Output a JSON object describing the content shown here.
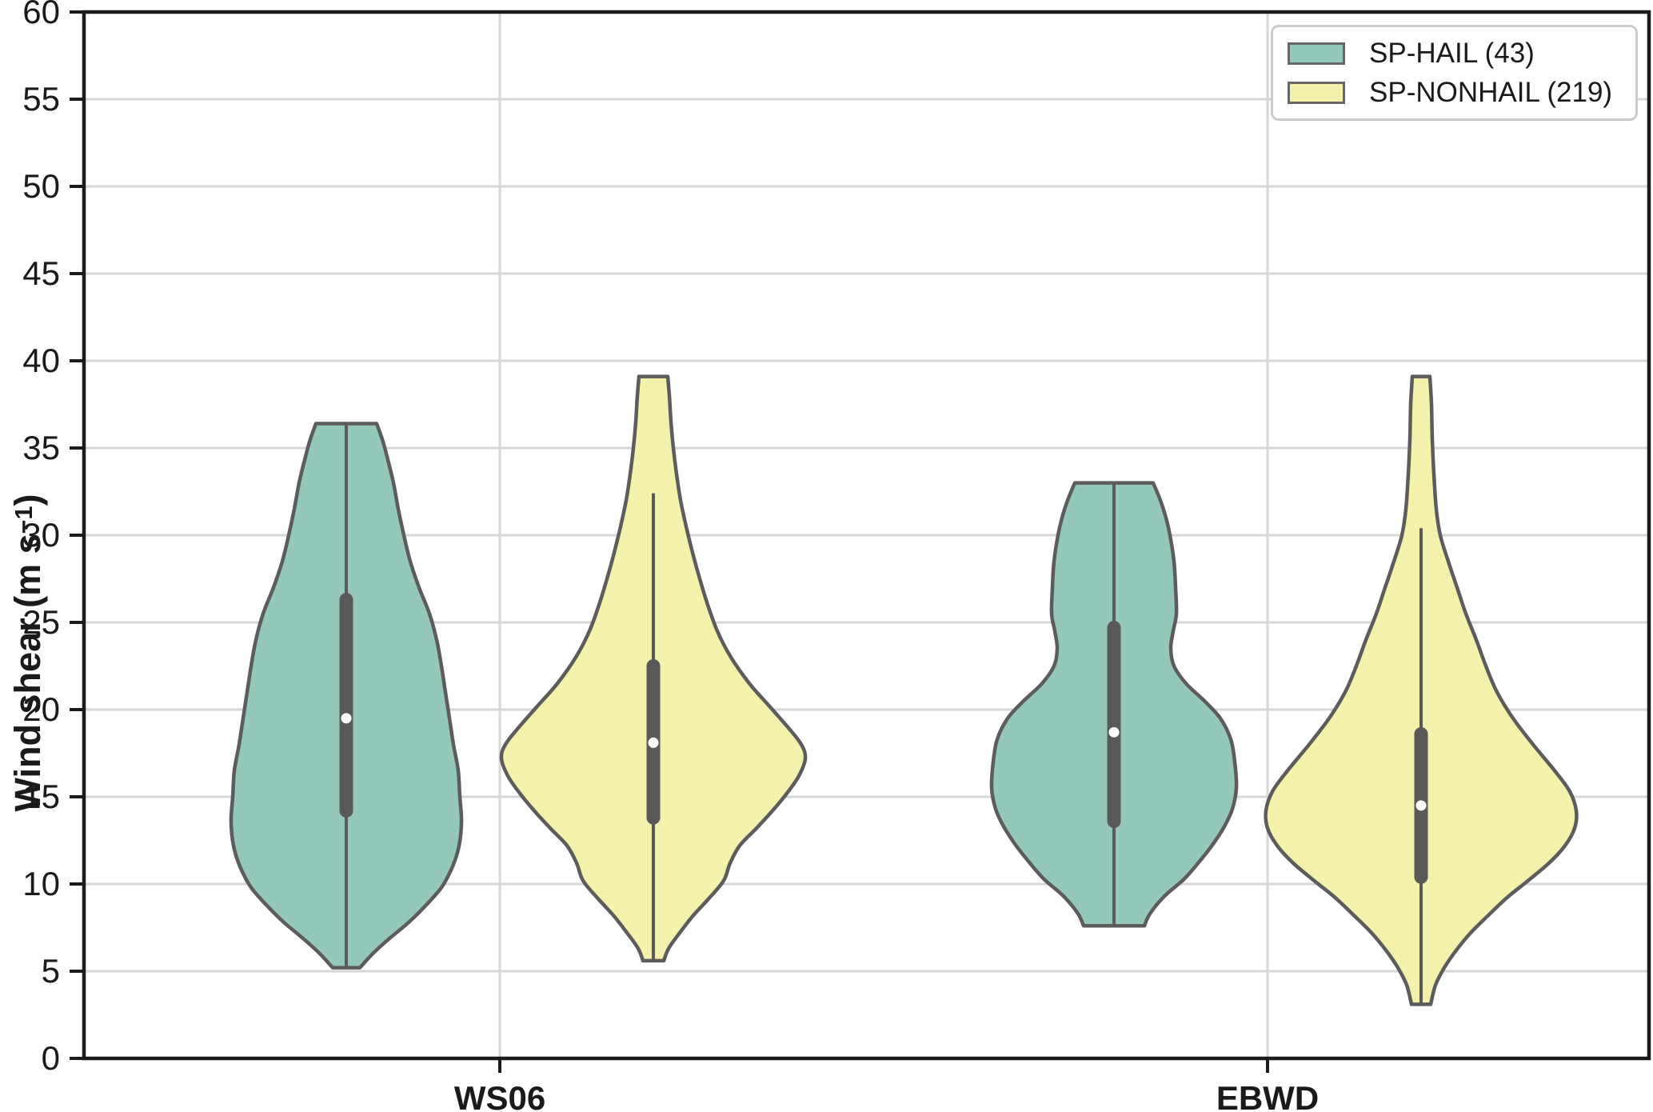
{
  "figure": {
    "background": "#ffffff",
    "ylabel": {
      "main": "Wind shear (m s",
      "sup": "−1",
      "end": ")"
    },
    "legend": {
      "items": [
        {
          "label": "SP-HAIL (43)",
          "color": "#94c8ba"
        },
        {
          "label": "SP-NONHAIL (219)",
          "color": "#f3f1ab"
        }
      ]
    }
  },
  "style": {
    "violin_outline": "#5c5c5c",
    "box_color": "#595959",
    "median_dot": "#ffffff",
    "grid_color": "#d6d6d6",
    "spine_color": "#1a1a1a",
    "hail_fill": "#94c8ba",
    "nonhail_fill": "#f3f1ab"
  },
  "chart_data": {
    "type": "violin",
    "title": "",
    "xlabel": "",
    "ylabel": "Wind shear (m s^-1)",
    "ylim": [
      0,
      60
    ],
    "ytick_step": 5,
    "grid": true,
    "legend_position": "upper right",
    "categories": [
      "WS06",
      "EBWD"
    ],
    "groups": [
      "SP-HAIL (43)",
      "SP-NONHAIL (219)"
    ],
    "violins": [
      {
        "category": "WS06",
        "group": "SP-HAIL",
        "n": 43,
        "color": "#94c8ba",
        "stats": {
          "min": 5.2,
          "q1": 14.2,
          "median": 19.5,
          "q3": 26.3,
          "max": 36.4,
          "whisker_low": 5.2,
          "whisker_high": 36.4
        },
        "profile": [
          [
            36.4,
            38
          ],
          [
            35.5,
            45
          ],
          [
            34.5,
            51
          ],
          [
            33,
            59
          ],
          [
            31.5,
            65
          ],
          [
            30,
            72
          ],
          [
            28.5,
            80
          ],
          [
            27,
            91
          ],
          [
            25.5,
            104
          ],
          [
            24,
            113
          ],
          [
            22.5,
            119
          ],
          [
            21,
            124
          ],
          [
            19.5,
            129
          ],
          [
            18,
            134
          ],
          [
            16.5,
            140
          ],
          [
            15,
            142
          ],
          [
            13.8,
            144
          ],
          [
            12.8,
            143
          ],
          [
            11.8,
            139
          ],
          [
            10.8,
            131
          ],
          [
            9.8,
            119
          ],
          [
            8.8,
            100
          ],
          [
            7.8,
            78
          ],
          [
            6.8,
            52
          ],
          [
            6,
            33
          ],
          [
            5.2,
            17
          ]
        ]
      },
      {
        "category": "WS06",
        "group": "SP-NONHAIL",
        "n": 219,
        "color": "#f3f1ab",
        "stats": {
          "min": 5.6,
          "q1": 13.8,
          "median": 18.1,
          "q3": 22.5,
          "max": 39.1,
          "whisker_low": 5.6,
          "whisker_high": 32.4
        },
        "profile": [
          [
            39.1,
            18
          ],
          [
            38,
            20
          ],
          [
            36.5,
            22
          ],
          [
            35,
            25
          ],
          [
            33.5,
            29
          ],
          [
            32,
            34
          ],
          [
            30.5,
            41
          ],
          [
            29,
            49
          ],
          [
            27.5,
            58
          ],
          [
            26,
            68
          ],
          [
            24.5,
            80
          ],
          [
            23,
            97
          ],
          [
            21.5,
            120
          ],
          [
            20.2,
            145
          ],
          [
            19,
            168
          ],
          [
            18,
            185
          ],
          [
            17.2,
            190
          ],
          [
            16.2,
            182
          ],
          [
            15.2,
            167
          ],
          [
            14.2,
            149
          ],
          [
            13.2,
            129
          ],
          [
            12.2,
            108
          ],
          [
            11.2,
            96
          ],
          [
            10.2,
            88
          ],
          [
            9.2,
            70
          ],
          [
            8.2,
            50
          ],
          [
            7.2,
            33
          ],
          [
            6.3,
            19
          ],
          [
            5.6,
            13
          ]
        ]
      },
      {
        "category": "EBWD",
        "group": "SP-HAIL",
        "n": 43,
        "color": "#94c8ba",
        "stats": {
          "min": 7.6,
          "q1": 13.6,
          "median": 18.7,
          "q3": 24.7,
          "max": 33.0,
          "whisker_low": 7.6,
          "whisker_high": 33.0
        },
        "profile": [
          [
            33,
            49
          ],
          [
            32,
            58
          ],
          [
            31,
            65
          ],
          [
            30,
            70
          ],
          [
            28.5,
            75
          ],
          [
            27,
            77
          ],
          [
            25.5,
            78
          ],
          [
            24.5,
            74
          ],
          [
            23.5,
            71
          ],
          [
            22.5,
            75
          ],
          [
            21.5,
            90
          ],
          [
            20.5,
            113
          ],
          [
            19.5,
            133
          ],
          [
            18.3,
            146
          ],
          [
            17,
            151
          ],
          [
            15.5,
            153
          ],
          [
            14.3,
            148
          ],
          [
            13.3,
            138
          ],
          [
            12.3,
            124
          ],
          [
            11.3,
            107
          ],
          [
            10.3,
            88
          ],
          [
            9.3,
            63
          ],
          [
            8.3,
            45
          ],
          [
            7.6,
            38
          ]
        ]
      },
      {
        "category": "EBWD",
        "group": "SP-NONHAIL",
        "n": 219,
        "color": "#f3f1ab",
        "stats": {
          "min": 3.1,
          "q1": 10.4,
          "median": 14.5,
          "q3": 18.6,
          "max": 39.1,
          "whisker_low": 3.1,
          "whisker_high": 30.4
        },
        "profile": [
          [
            39.1,
            11
          ],
          [
            37.5,
            13
          ],
          [
            35.5,
            14
          ],
          [
            33.5,
            16
          ],
          [
            31.5,
            19
          ],
          [
            30,
            24
          ],
          [
            28.5,
            34
          ],
          [
            27,
            45
          ],
          [
            25.5,
            56
          ],
          [
            24,
            69
          ],
          [
            22.5,
            81
          ],
          [
            21,
            95
          ],
          [
            19.5,
            115
          ],
          [
            18,
            140
          ],
          [
            16.5,
            167
          ],
          [
            15.3,
            186
          ],
          [
            14.2,
            194
          ],
          [
            13.2,
            192
          ],
          [
            12.2,
            180
          ],
          [
            11.2,
            160
          ],
          [
            10.2,
            134
          ],
          [
            9.2,
            107
          ],
          [
            8.2,
            84
          ],
          [
            7.2,
            62
          ],
          [
            6.2,
            44
          ],
          [
            5.2,
            29
          ],
          [
            4.2,
            18
          ],
          [
            3.1,
            12
          ]
        ]
      }
    ]
  }
}
